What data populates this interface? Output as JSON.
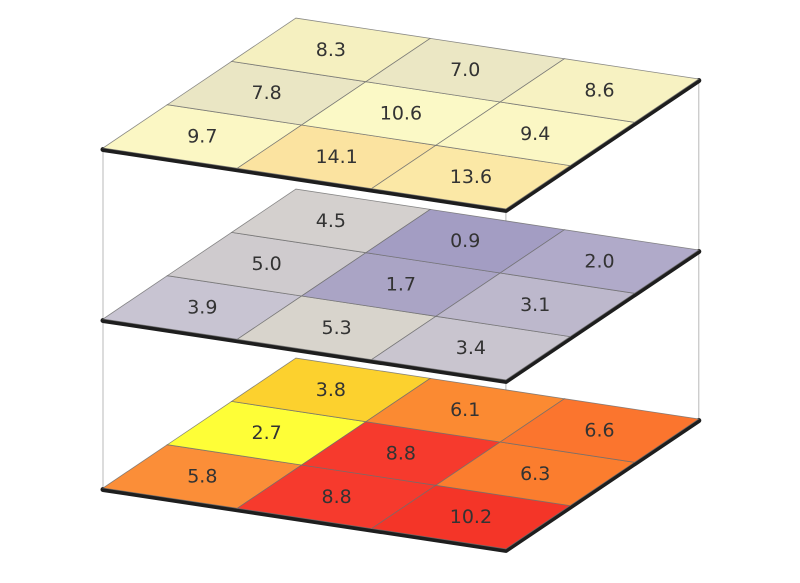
{
  "chart_data": {
    "type": "heatmap",
    "layers": [
      {
        "values": [
          [
            9.7,
            14.1,
            13.6
          ],
          [
            7.8,
            10.6,
            9.4
          ],
          [
            8.3,
            7.0,
            8.6
          ]
        ],
        "labels": [
          [
            "9.7",
            "14.1",
            "13.6"
          ],
          [
            "7.8",
            "10.6",
            "9.4"
          ],
          [
            "8.3",
            "7.0",
            "8.6"
          ]
        ],
        "colors": [
          [
            "#fbf7c4",
            "#fbe3a0",
            "#fbe8a6"
          ],
          [
            "#eae6c4",
            "#fbf9c6",
            "#fbf7c4"
          ],
          [
            "#f5f0c0",
            "#ebe7c4",
            "#f7f2c2"
          ]
        ]
      },
      {
        "values": [
          [
            3.9,
            5.3,
            3.4
          ],
          [
            5.0,
            1.7,
            3.1
          ],
          [
            4.5,
            0.9,
            2.0
          ]
        ],
        "labels": [
          [
            "3.9",
            "5.3",
            "3.4"
          ],
          [
            "5.0",
            "1.7",
            "3.1"
          ],
          [
            "4.5",
            "0.9",
            "2.0"
          ]
        ],
        "colors": [
          [
            "#c8c4d2",
            "#d8d4cc",
            "#c9c5cf"
          ],
          [
            "#cfcbce",
            "#aaa4c5",
            "#bdb8cc"
          ],
          [
            "#d4d0ce",
            "#a39dc3",
            "#b0aac9"
          ]
        ]
      },
      {
        "values": [
          [
            5.8,
            8.8,
            10.2
          ],
          [
            2.7,
            8.8,
            6.3
          ],
          [
            3.8,
            6.1,
            6.6
          ]
        ],
        "labels": [
          [
            "5.8",
            "8.8",
            "10.2"
          ],
          [
            "2.7",
            "8.8",
            "6.3"
          ],
          [
            "3.8",
            "6.1",
            "6.6"
          ]
        ],
        "colors": [
          [
            "#fb8e38",
            "#f63a2d",
            "#f43528"
          ],
          [
            "#fefe37",
            "#f63a2d",
            "#fb7d2e"
          ],
          [
            "#fcd12e",
            "#fb8a32",
            "#fb752e"
          ]
        ]
      }
    ]
  }
}
